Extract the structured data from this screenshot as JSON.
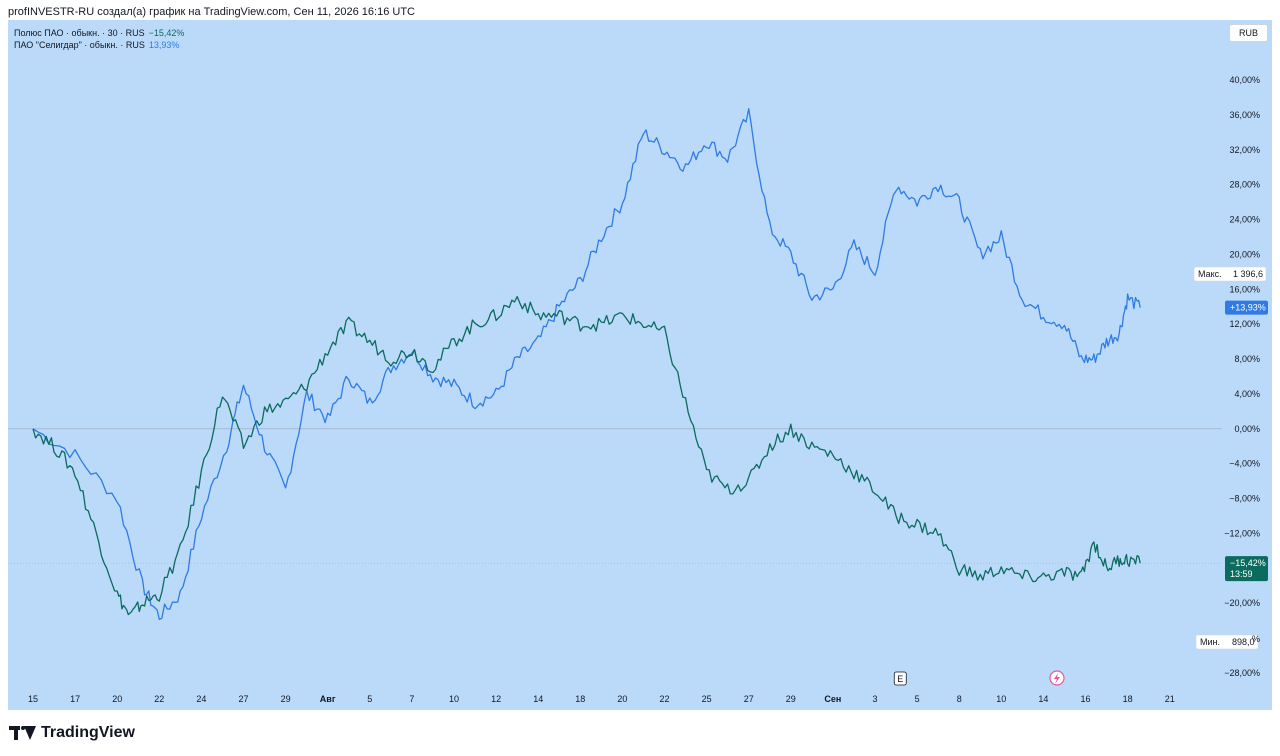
{
  "header": {
    "title": "profINVESTR-RU создал(а) график на TradingView.com, Сен 11, 2026 16:16 UTC"
  },
  "legend": [
    {
      "name": "Полюс ПАО · обыкн. · 30 · RUS",
      "value": "−15,42%"
    },
    {
      "name": "ПАО \"Селигдар\" · обыкн. · RUS",
      "value": "13,93%"
    }
  ],
  "currency_button": "RUB",
  "tags": {
    "max_label": "Макс.",
    "max_value": "1 396,6",
    "blue_last": "+13,93%",
    "green_last": "−15,42%",
    "green_time": "13:59",
    "min_label": "Мин.",
    "min_value": "898,0",
    "partial_tick": "%"
  },
  "events": {
    "earnings": "E"
  },
  "footer": {
    "brand": "TradingView"
  },
  "colors": {
    "blue_series": "#2f7be3",
    "green_series": "#0b6b5e",
    "background": "#bbdafa"
  },
  "chart_data": {
    "type": "line",
    "y_unit": "%",
    "ylim": [
      -30,
      42
    ],
    "y_ticks": [
      {
        "v": 40,
        "label": "40,00%"
      },
      {
        "v": 36,
        "label": "36,00%"
      },
      {
        "v": 32,
        "label": "32,00%"
      },
      {
        "v": 28,
        "label": "28,00%"
      },
      {
        "v": 24,
        "label": "24,00%"
      },
      {
        "v": 20,
        "label": "20,00%"
      },
      {
        "v": 16,
        "label": "16,00%"
      },
      {
        "v": 12,
        "label": "12,00%"
      },
      {
        "v": 8,
        "label": "8,00%"
      },
      {
        "v": 4,
        "label": "4,00%"
      },
      {
        "v": 0,
        "label": "0,00%"
      },
      {
        "v": -4,
        "label": "−4,00%"
      },
      {
        "v": -8,
        "label": "−8,00%"
      },
      {
        "v": -12,
        "label": "−12,00%"
      },
      {
        "v": -20,
        "label": "−20,00%"
      },
      {
        "v": -28,
        "label": "−28,00%"
      }
    ],
    "x_ticks": [
      "15",
      "17",
      "20",
      "22",
      "24",
      "27",
      "29",
      "Авг",
      "5",
      "7",
      "10",
      "12",
      "14",
      "18",
      "20",
      "22",
      "25",
      "27",
      "29",
      "Сен",
      "3",
      "5",
      "8",
      "10",
      "14",
      "16",
      "18",
      "21"
    ],
    "x_bold": [
      "Авг",
      "Сен"
    ],
    "grid": false,
    "zero_line": true,
    "series": [
      {
        "name": "ПАО \"Селигдар\" · обыкн. · RUS",
        "x": [
          0,
          1,
          2,
          2.6,
          3,
          3.5,
          4,
          4.6,
          5,
          5.5,
          6,
          6.5,
          7,
          7.5,
          8,
          8.5,
          9,
          9.5,
          10,
          10.5,
          11,
          11.5,
          12,
          12.5,
          13,
          13.5,
          14,
          14.5,
          15,
          15.5,
          16,
          16.5,
          17,
          17.5,
          18,
          18.5,
          19,
          19.5,
          20,
          20.5,
          21,
          21.5,
          22,
          22.5,
          23,
          23.5,
          24,
          24.5,
          24.9,
          25.2,
          25.5,
          25.8,
          26,
          26.3
        ],
        "values": [
          0,
          -3,
          -8,
          -18,
          -21.5,
          -19,
          -10,
          -2,
          5,
          -2,
          -7,
          4,
          1,
          6,
          3,
          7,
          9,
          6,
          5,
          3,
          4,
          8,
          10,
          14,
          17,
          22,
          26,
          34,
          32,
          30,
          33,
          31,
          36,
          23,
          20,
          15,
          16,
          21,
          18,
          28,
          26,
          28,
          26,
          20,
          22,
          15,
          13,
          12,
          8,
          8,
          10,
          11,
          15,
          13.9
        ]
      },
      {
        "name": "Полюс ПАО · обыкн. · 30 · RUS",
        "x": [
          0,
          0.5,
          1,
          1.5,
          2,
          2.3,
          2.6,
          3,
          3.5,
          4,
          4.5,
          5,
          5.5,
          6,
          6.5,
          7,
          7.5,
          8,
          8.5,
          9,
          9.5,
          10,
          10.5,
          11,
          11.5,
          12,
          12.5,
          13,
          13.5,
          14,
          14.5,
          15,
          15.5,
          16,
          16.5,
          17,
          17.5,
          18,
          18.5,
          19,
          19.5,
          20,
          20.5,
          21,
          21.5,
          22,
          22.5,
          23,
          23.5,
          24,
          24.5,
          24.9,
          25.2,
          25.5,
          25.8,
          26,
          26.3
        ],
        "values": [
          0,
          -2,
          -5,
          -12,
          -19,
          -21.5,
          -20,
          -19,
          -14,
          -5,
          4,
          -2,
          2,
          3,
          5,
          9,
          12,
          10,
          8,
          9,
          7,
          10,
          12,
          13,
          15,
          13,
          13,
          12,
          12,
          13,
          12,
          11,
          3,
          -5,
          -7,
          -6,
          -2,
          0,
          -2,
          -3,
          -5,
          -7,
          -10,
          -11,
          -12,
          -16,
          -17,
          -16,
          -17,
          -17,
          -16.5,
          -17,
          -13,
          -16,
          -15,
          -15,
          -15.4
        ]
      }
    ],
    "events": [
      {
        "x": 20.6,
        "label": "E"
      }
    ]
  }
}
